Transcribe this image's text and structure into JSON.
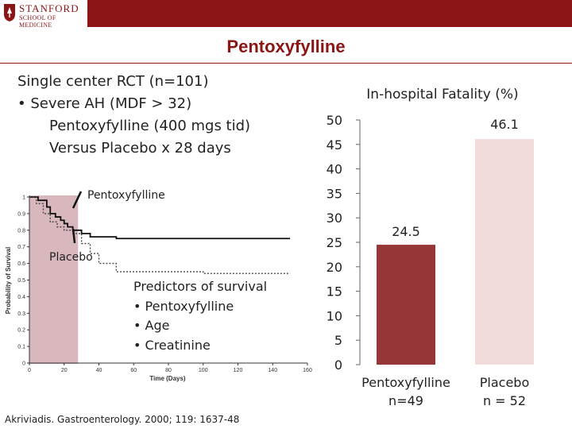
{
  "header": {
    "logo_name": "STANFORD",
    "logo_sub": "SCHOOL OF MEDICINE",
    "bar_color": "#8c1515"
  },
  "slide": {
    "title": "Pentoxyfylline",
    "bullets": [
      "Single center RCT (n=101)",
      "• Severe AH (MDF > 32)",
      "Pentoxyfylline (400 mgs tid)",
      "Versus Placebo x 28 days"
    ],
    "km_label_pentox": "Pentoxyfylline",
    "km_label_placebo": "Placebo",
    "predictors": {
      "heading": "Predictors of survival",
      "items": [
        "• Pentoxyfylline",
        "• Age",
        "• Creatinine"
      ]
    },
    "citation": "Akriviadis. Gastroenterology. 2000; 119: 1637-48"
  },
  "chart_data": [
    {
      "type": "line",
      "title": "",
      "xlabel": "Time (Days)",
      "ylabel": "Probability of Survival",
      "xlim": [
        0,
        160
      ],
      "ylim": [
        0,
        1
      ],
      "x_ticks": [
        "0",
        "20",
        "40",
        "60",
        "80",
        "100",
        "120",
        "140",
        "160"
      ],
      "y_ticks": [
        "0",
        "0.1",
        "0.2",
        "0.3",
        "0.4",
        "0.5",
        "0.6",
        "0.7",
        "0.8",
        "0.9",
        "1"
      ],
      "highlight_range": [
        0,
        28
      ],
      "highlight_color": "#d9b8bd",
      "series": [
        {
          "name": "Pentoxyfylline",
          "style": "solid",
          "x": [
            0,
            5,
            10,
            12,
            15,
            18,
            20,
            22,
            25,
            30,
            35,
            40,
            50,
            70,
            90,
            110,
            150
          ],
          "y": [
            1,
            0.98,
            0.94,
            0.9,
            0.88,
            0.86,
            0.84,
            0.82,
            0.8,
            0.78,
            0.76,
            0.76,
            0.75,
            0.75,
            0.75,
            0.75,
            0.75
          ]
        },
        {
          "name": "Placebo",
          "style": "dotted",
          "x": [
            0,
            4,
            8,
            12,
            16,
            20,
            25,
            30,
            35,
            40,
            50,
            60,
            80,
            100,
            120,
            150
          ],
          "y": [
            1,
            0.96,
            0.9,
            0.85,
            0.82,
            0.8,
            0.78,
            0.72,
            0.66,
            0.6,
            0.55,
            0.55,
            0.55,
            0.54,
            0.54,
            0.54
          ]
        }
      ]
    },
    {
      "type": "bar",
      "title": "In-hospital Fatality (%)",
      "categories": [
        "Pentoxyfylline",
        "Placebo"
      ],
      "category_sublabels": [
        "n=49",
        "n = 52"
      ],
      "values": [
        24.5,
        46.1
      ],
      "value_labels": [
        "24.5",
        "46.1"
      ],
      "colors": [
        "#963637",
        "#f2dcdb"
      ],
      "ylim": [
        0,
        50
      ],
      "y_ticks": [
        "0",
        "5",
        "10",
        "15",
        "20",
        "25",
        "30",
        "35",
        "40",
        "45",
        "50"
      ],
      "grid": false
    }
  ]
}
